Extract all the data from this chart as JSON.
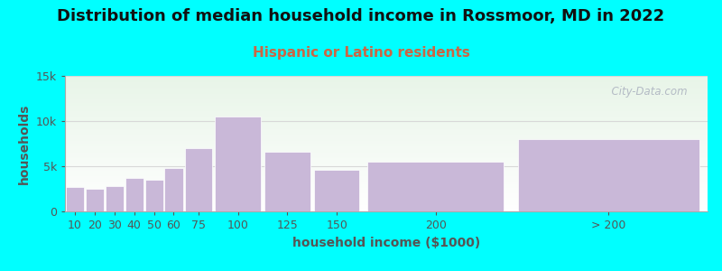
{
  "title": "Distribution of median household income in Rossmoor, MD in 2022",
  "subtitle": "Hispanic or Latino residents",
  "xlabel": "household income ($1000)",
  "ylabel": "households",
  "background_outer": "#00FFFF",
  "background_inner_top": "#e8f5e8",
  "background_inner_bottom": "#ffffff",
  "bar_color": "#c9b8d8",
  "bar_edge_color": "#ffffff",
  "grid_color": "#d8d8d8",
  "ytick_labels": [
    "0",
    "5k",
    "10k",
    "15k"
  ],
  "ytick_values": [
    0,
    5000,
    10000,
    15000
  ],
  "ylim": [
    0,
    15000
  ],
  "title_fontsize": 13,
  "subtitle_fontsize": 11,
  "subtitle_color": "#cc6644",
  "title_color": "#111111",
  "axis_label_fontsize": 10,
  "tick_fontsize": 9,
  "watermark_text": "  City-Data.com",
  "watermark_color": "#aab0be",
  "bar_lefts": [
    0,
    10,
    20,
    30,
    40,
    50,
    60,
    75,
    100,
    125,
    150,
    225
  ],
  "bar_widths": [
    10,
    10,
    10,
    10,
    10,
    10,
    15,
    25,
    25,
    25,
    75,
    100
  ],
  "bar_heights": [
    2700,
    2500,
    2800,
    3700,
    3500,
    4800,
    7000,
    10500,
    6600,
    4600,
    5500,
    8000
  ],
  "xtick_positions": [
    5,
    15,
    25,
    35,
    45,
    55,
    67.5,
    87.5,
    112.5,
    137.5,
    187.5,
    275
  ],
  "xtick_labels": [
    "10",
    "20",
    "30",
    "40",
    "50",
    "60",
    "75",
    "100",
    "125",
    "150",
    "200",
    "> 200"
  ],
  "xlim": [
    0,
    325
  ]
}
